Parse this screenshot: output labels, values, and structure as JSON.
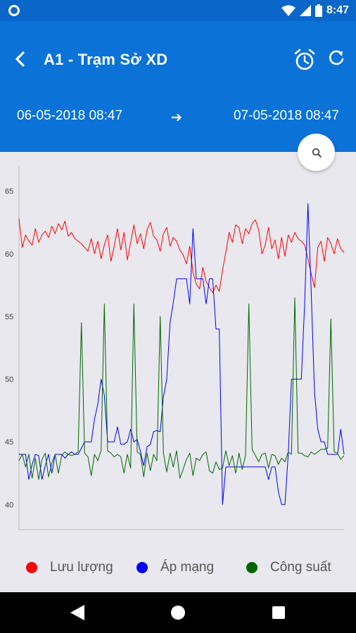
{
  "status_bar": {
    "time": "8:47"
  },
  "app_bar": {
    "title": "A1 - Trạm Sở XD",
    "date_start": "06-05-2018 08:47",
    "date_arrow": "➔",
    "date_end": "07-05-2018 08:47"
  },
  "icons": {
    "back": "back-arrow-icon",
    "alarm": "alarm-clock-icon",
    "refresh": "refresh-icon",
    "zoom": "search-icon"
  },
  "chart_data": {
    "type": "line",
    "ylim": [
      38,
      67
    ],
    "y_ticks": [
      "40",
      "45",
      "50",
      "55",
      "60",
      "65"
    ],
    "grid": false,
    "legend_position": "bottom",
    "x": [
      0,
      1,
      2,
      3,
      4,
      5,
      6,
      7,
      8,
      9,
      10,
      11,
      12,
      13,
      14,
      15,
      16,
      17,
      18,
      19,
      20,
      21,
      22,
      23,
      24,
      25,
      26,
      27,
      28,
      29,
      30,
      31,
      32,
      33,
      34,
      35,
      36,
      37,
      38,
      39,
      40,
      41,
      42,
      43,
      44,
      45,
      46,
      47,
      48,
      49,
      50,
      51,
      52,
      53,
      54,
      55,
      56,
      57,
      58,
      59,
      60,
      61,
      62,
      63,
      64,
      65,
      66,
      67,
      68,
      69,
      70,
      71,
      72,
      73,
      74,
      75,
      76,
      77,
      78,
      79,
      80,
      81,
      82,
      83,
      84,
      85,
      86,
      87,
      88,
      89,
      90,
      91,
      92,
      93,
      94,
      95,
      96,
      97,
      98,
      99
    ],
    "series": [
      {
        "name": "Lưu lượng",
        "color": "#ff0000",
        "values": [
          62.8,
          60.5,
          61.5,
          61.0,
          60.7,
          62.0,
          60.9,
          61.5,
          61.8,
          61.3,
          62.2,
          61.6,
          62.4,
          61.9,
          62.6,
          61.4,
          61.7,
          61.2,
          61.0,
          60.8,
          60.5,
          60.2,
          61.2,
          60.0,
          61.0,
          59.6,
          60.7,
          61.5,
          59.4,
          60.6,
          62.0,
          60.3,
          61.7,
          59.5,
          60.9,
          62.3,
          60.8,
          61.6,
          60.4,
          61.9,
          62.5,
          61.4,
          61.1,
          60.2,
          61.6,
          62.1,
          60.6,
          61.3,
          61.0,
          60.3,
          59.9,
          59.2,
          60.6,
          58.5,
          57.6,
          57.2,
          58.9,
          57.8,
          57.3,
          56.9,
          57.5,
          57.0,
          58.7,
          60.1,
          61.7,
          60.9,
          62.3,
          62.1,
          60.8,
          62.0,
          61.6,
          62.4,
          62.7,
          61.9,
          60.0,
          60.7,
          62.1,
          60.4,
          61.1,
          59.6,
          61.3,
          59.8,
          61.5,
          60.9,
          61.7,
          61.2,
          61.0,
          60.7,
          59.6,
          58.4,
          57.3,
          60.5,
          61.0,
          59.4,
          61.3,
          60.8,
          60.0,
          61.2,
          60.4,
          60.1
        ]
      },
      {
        "name": "Áp mạng",
        "color": "#0000ff",
        "values": [
          44.0,
          44.0,
          44.0,
          42.0,
          43.2,
          44.0,
          43.9,
          42.0,
          43.1,
          44.0,
          42.5,
          44.0,
          44.0,
          44.0,
          43.7,
          44.0,
          44.2,
          44.0,
          44.0,
          44.5,
          45.0,
          45.0,
          45.0,
          46.8,
          48.0,
          50.0,
          48.7,
          45.0,
          45.0,
          45.0,
          46.2,
          44.8,
          44.8,
          45.0,
          46.0,
          45.0,
          45.2,
          44.2,
          43.1,
          44.6,
          44.8,
          45.8,
          45.9,
          45.8,
          48.6,
          50.0,
          54.5,
          56.1,
          58.0,
          58.0,
          58.0,
          58.0,
          56.0,
          62.0,
          58.0,
          58.0,
          58.0,
          56.0,
          58.0,
          58.0,
          54.0,
          54.0,
          40.0,
          43.0,
          43.0,
          43.0,
          43.0,
          43.0,
          43.0,
          43.0,
          43.0,
          43.0,
          43.0,
          43.0,
          43.0,
          43.0,
          42.0,
          43.0,
          43.0,
          41.0,
          40.0,
          40.0,
          44.0,
          50.0,
          50.0,
          50.0,
          50.0,
          56.0,
          64.0,
          57.0,
          49.0,
          46.0,
          45.0,
          45.0,
          44.0,
          44.0,
          44.0,
          44.0,
          46.0,
          44.0
        ]
      },
      {
        "name": "Công suất",
        "color": "#006600",
        "values": [
          43.5,
          44.0,
          43.0,
          44.0,
          42.1,
          43.7,
          42.0,
          43.6,
          44.1,
          42.2,
          43.3,
          44.0,
          42.5,
          43.9,
          44.2,
          44.0,
          43.9,
          44.0,
          44.2,
          54.5,
          44.1,
          43.8,
          42.3,
          44.0,
          43.5,
          44.3,
          56.0,
          44.3,
          44.1,
          43.8,
          44.0,
          43.8,
          42.5,
          44.0,
          42.9,
          56.0,
          44.2,
          44.0,
          42.2,
          44.1,
          42.7,
          44.0,
          43.5,
          55.0,
          44.1,
          42.6,
          44.1,
          43.0,
          44.3,
          42.1,
          42.8,
          43.6,
          44.1,
          42.3,
          43.7,
          43.5,
          44.0,
          44.2,
          42.7,
          42.5,
          43.4,
          42.8,
          42.9,
          44.3,
          43.1,
          43.9,
          42.5,
          44.1,
          42.8,
          43.9,
          56.0,
          44.4,
          43.9,
          43.4,
          44.0,
          44.1,
          42.9,
          44.0,
          43.9,
          43.2,
          43.7,
          43.4,
          44.2,
          44.0,
          56.5,
          44.1,
          44.1,
          43.9,
          43.8,
          44.2,
          44.0,
          44.2,
          44.4,
          44.4,
          44.5,
          54.8,
          44.2,
          44.1,
          43.6,
          43.9
        ]
      }
    ]
  },
  "legend": [
    {
      "label": "Lưu lượng",
      "color": "#ff0000"
    },
    {
      "label": "Áp mạng",
      "color": "#0000ff"
    },
    {
      "label": "Công suất",
      "color": "#006600"
    }
  ]
}
